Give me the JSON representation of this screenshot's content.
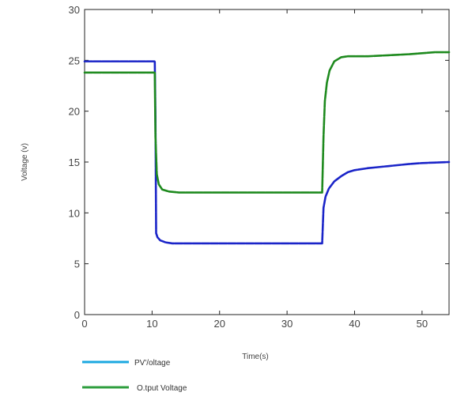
{
  "chart_data": {
    "type": "line",
    "title": "",
    "xlabel": "Time(s)",
    "ylabel": "Voltage (v)",
    "xlim": [
      0,
      54
    ],
    "ylim": [
      0,
      30
    ],
    "xticks": [
      0,
      10,
      20,
      30,
      40,
      50
    ],
    "yticks": [
      0,
      5,
      10,
      15,
      20,
      25,
      30
    ],
    "ytick_labels": [
      "0",
      "5",
      "10",
      "15",
      "20",
      "25",
      "30"
    ],
    "grid": false,
    "legend_position": "bottom-left",
    "series": [
      {
        "name": "PV'/oltage",
        "color": "#1a24c8",
        "legend_color": "#1ba8e0",
        "x": [
          0,
          10.4,
          10.5,
          10.6,
          10.8,
          11.2,
          12,
          13,
          15,
          20,
          25,
          30,
          35.2,
          35.4,
          35.7,
          36.2,
          37,
          38,
          39,
          40,
          42,
          45,
          48,
          50,
          52,
          54
        ],
        "y": [
          24.9,
          24.9,
          19.5,
          8.0,
          7.6,
          7.3,
          7.1,
          7.0,
          7.0,
          7.0,
          7.0,
          7.0,
          7.0,
          10.5,
          11.6,
          12.4,
          13.1,
          13.6,
          14.0,
          14.2,
          14.4,
          14.6,
          14.8,
          14.9,
          14.95,
          15.0
        ]
      },
      {
        "name": "O.tput Voltage",
        "color": "#1e8a1e",
        "legend_color": "#2e9e3e",
        "x": [
          0,
          10.4,
          10.5,
          10.7,
          11.0,
          11.5,
          12.5,
          14,
          20,
          25,
          30,
          35.2,
          35.4,
          35.6,
          35.9,
          36.3,
          37,
          38,
          39,
          40,
          42,
          45,
          48,
          50,
          52,
          54
        ],
        "y": [
          23.8,
          23.8,
          17.5,
          13.8,
          12.8,
          12.3,
          12.1,
          12.0,
          12.0,
          12.0,
          12.0,
          12.0,
          17.5,
          21.0,
          22.8,
          24.0,
          24.9,
          25.3,
          25.4,
          25.4,
          25.4,
          25.5,
          25.6,
          25.7,
          25.8,
          25.8
        ]
      }
    ]
  }
}
